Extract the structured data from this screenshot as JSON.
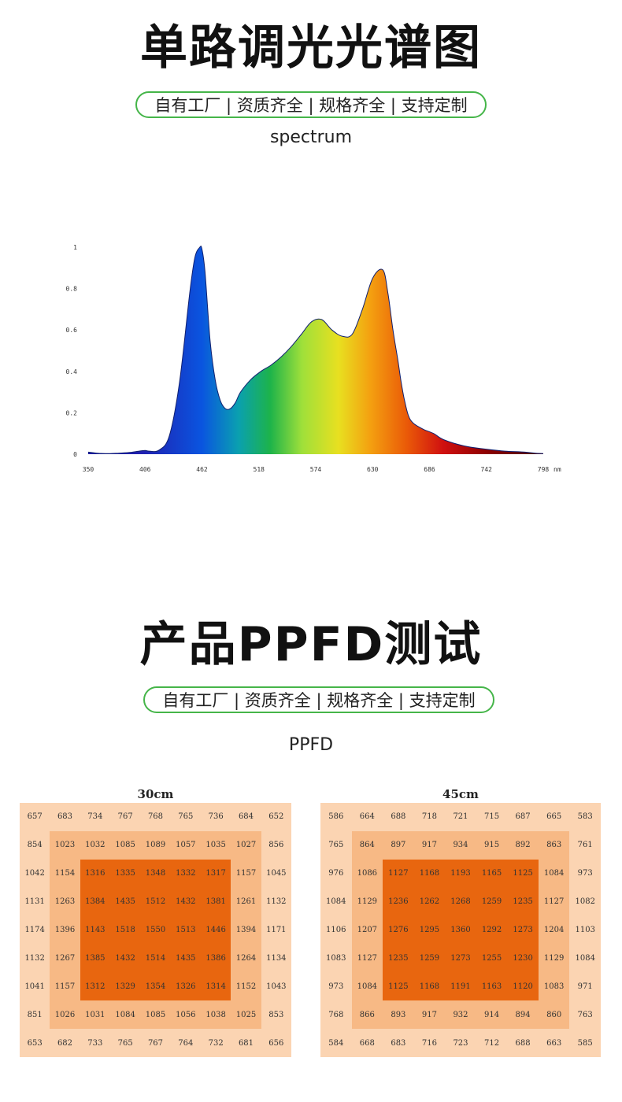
{
  "section1": {
    "title": "单路调光光谱图",
    "tagline": "自有工厂 | 资质齐全 | 规格齐全 | 支持定制",
    "subtitle": "spectrum"
  },
  "section2": {
    "title": "产品PPFD测试",
    "tagline": "自有工厂 | 资质齐全 | 规格齐全 | 支持定制",
    "subtitle": "PPFD"
  },
  "colors": {
    "accent_green": "#45b549",
    "outer_cell": "#fbd4b2",
    "mid_cell": "#f7b985",
    "inner_cell": "#e8660f"
  },
  "chart_data": [
    {
      "type": "area",
      "x": [
        350,
        360,
        370,
        380,
        390,
        400,
        406,
        410,
        420,
        430,
        440,
        450,
        455,
        460,
        462,
        465,
        470,
        475,
        480,
        485,
        490,
        495,
        500,
        510,
        520,
        530,
        540,
        550,
        560,
        570,
        580,
        590,
        600,
        610,
        620,
        630,
        640,
        645,
        650,
        655,
        658,
        661,
        665,
        670,
        680,
        690,
        700,
        720,
        740,
        760,
        780,
        790,
        798
      ],
      "values": [
        0.01,
        0.004,
        0.003,
        0.005,
        0.008,
        0.015,
        0.018,
        0.015,
        0.02,
        0.09,
        0.35,
        0.78,
        0.95,
        1.0,
        0.99,
        0.88,
        0.55,
        0.36,
        0.26,
        0.22,
        0.22,
        0.25,
        0.3,
        0.36,
        0.4,
        0.43,
        0.47,
        0.52,
        0.58,
        0.64,
        0.65,
        0.6,
        0.57,
        0.58,
        0.7,
        0.85,
        0.89,
        0.78,
        0.6,
        0.45,
        0.35,
        0.27,
        0.19,
        0.15,
        0.12,
        0.1,
        0.07,
        0.04,
        0.025,
        0.015,
        0.01,
        0.005,
        0.003
      ],
      "xticks": [
        350,
        406,
        462,
        518,
        574,
        630,
        686,
        742,
        798
      ],
      "xtick_labels": [
        "350",
        "406",
        "462",
        "518",
        "574",
        "630",
        "686",
        "742",
        "798"
      ],
      "x_unit": "nm",
      "yticks": [
        "0",
        "0.2",
        "0.4",
        "0.6",
        "0.8",
        "1"
      ],
      "xlim": [
        350,
        798
      ],
      "ylim": [
        0,
        1
      ],
      "grid": false
    },
    {
      "type": "heatmap",
      "title": "30cm",
      "rows": [
        [
          657,
          683,
          734,
          767,
          768,
          765,
          736,
          684,
          652
        ],
        [
          854,
          1023,
          1032,
          1085,
          1089,
          1057,
          1035,
          1027,
          856
        ],
        [
          1042,
          1154,
          1316,
          1335,
          1348,
          1332,
          1317,
          1157,
          1045
        ],
        [
          1131,
          1263,
          1384,
          1435,
          1512,
          1432,
          1381,
          1261,
          1132
        ],
        [
          1174,
          1396,
          1143,
          1518,
          1550,
          1513,
          1446,
          1394,
          1171
        ],
        [
          1132,
          1267,
          1385,
          1432,
          1514,
          1435,
          1386,
          1264,
          1134
        ],
        [
          1041,
          1157,
          1312,
          1329,
          1354,
          1326,
          1314,
          1152,
          1043
        ],
        [
          851,
          1026,
          1031,
          1084,
          1085,
          1056,
          1038,
          1025,
          853
        ],
        [
          653,
          682,
          733,
          765,
          767,
          764,
          732,
          681,
          656
        ]
      ]
    },
    {
      "type": "heatmap",
      "title": "45cm",
      "rows": [
        [
          586,
          664,
          688,
          718,
          721,
          715,
          687,
          665,
          583
        ],
        [
          765,
          864,
          897,
          917,
          934,
          915,
          892,
          863,
          761
        ],
        [
          976,
          1086,
          1127,
          1168,
          1193,
          1165,
          1125,
          1084,
          973
        ],
        [
          1084,
          1129,
          1236,
          1262,
          1268,
          1259,
          1235,
          1127,
          1082
        ],
        [
          1106,
          1207,
          1276,
          1295,
          1360,
          1292,
          1273,
          1204,
          1103
        ],
        [
          1083,
          1127,
          1235,
          1259,
          1273,
          1255,
          1230,
          1129,
          1084
        ],
        [
          973,
          1084,
          1125,
          1168,
          1191,
          1163,
          1120,
          1083,
          971
        ],
        [
          768,
          866,
          893,
          917,
          932,
          914,
          894,
          860,
          763
        ],
        [
          584,
          668,
          683,
          716,
          723,
          712,
          688,
          663,
          585
        ]
      ]
    }
  ]
}
